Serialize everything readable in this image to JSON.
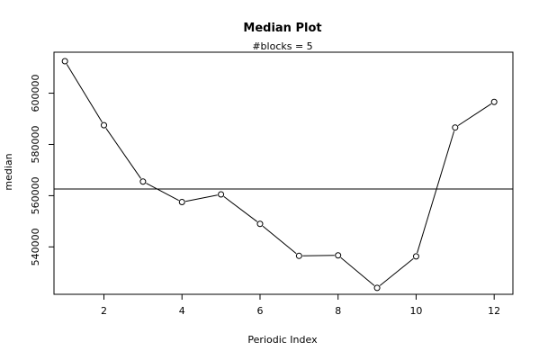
{
  "chart_data": {
    "type": "line",
    "title": "Median Plot",
    "subtitle": "#blocks =  5",
    "xlabel": "Periodic Index",
    "ylabel": "median",
    "x": [
      1,
      2,
      3,
      4,
      5,
      6,
      7,
      8,
      9,
      10,
      11,
      12
    ],
    "series": [
      {
        "values": [
          612500,
          587500,
          565500,
          557500,
          560500,
          549000,
          536500,
          536700,
          524000,
          536300,
          586600,
          596600
        ]
      }
    ],
    "reference_line": {
      "y": 562600
    },
    "xlim": [
      0.72,
      12.48
    ],
    "ylim": [
      521500,
      616000
    ],
    "x_ticks": [
      2,
      4,
      6,
      8,
      10,
      12
    ],
    "y_ticks": [
      540000,
      560000,
      580000,
      600000
    ],
    "marker": "open-circle",
    "colors": {
      "line": "#000000",
      "background": "#ffffff"
    },
    "grid": false
  }
}
